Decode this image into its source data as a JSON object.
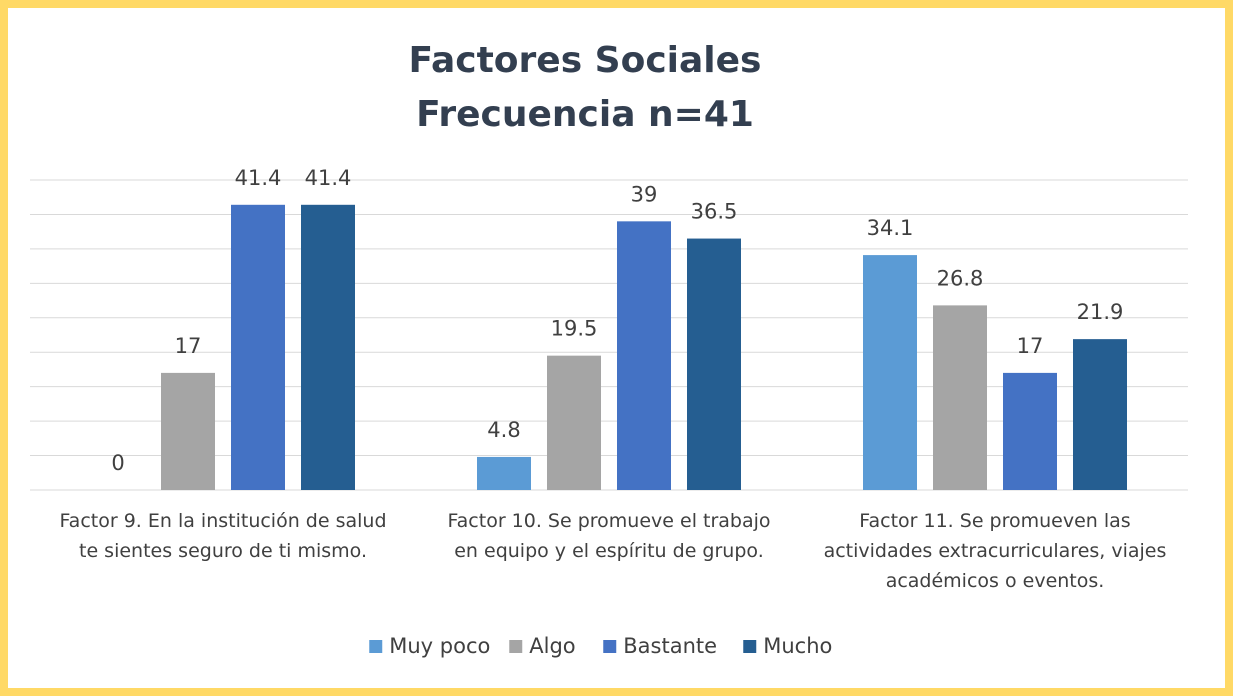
{
  "chart_data": {
    "type": "bar",
    "title": "Factores Sociales",
    "subtitle": "Frecuencia n=41",
    "categories": [
      "Factor 9. En la institución de salud te sientes seguro de ti mismo.",
      "Factor 10. Se promueve el trabajo en equipo y el espíritu de grupo.",
      "Factor 11. Se promueven las actividades extracurriculares, viajes académicos o eventos."
    ],
    "series": [
      {
        "name": "Muy poco",
        "color": "#5b9bd5",
        "values": [
          0,
          4.8,
          34.1
        ]
      },
      {
        "name": "Algo",
        "color": "#a5a5a5",
        "values": [
          17,
          19.5,
          26.8
        ]
      },
      {
        "name": "Bastante",
        "color": "#4472c4",
        "values": [
          41.4,
          39,
          17
        ]
      },
      {
        "name": "Mucho",
        "color": "#255e91",
        "values": [
          41.4,
          36.5,
          21.9
        ]
      }
    ],
    "ylim": [
      0,
      45
    ],
    "yticks": [
      0,
      5,
      10,
      15,
      20,
      25,
      30,
      35,
      40,
      45
    ],
    "grid": true,
    "legend": "bottom"
  }
}
